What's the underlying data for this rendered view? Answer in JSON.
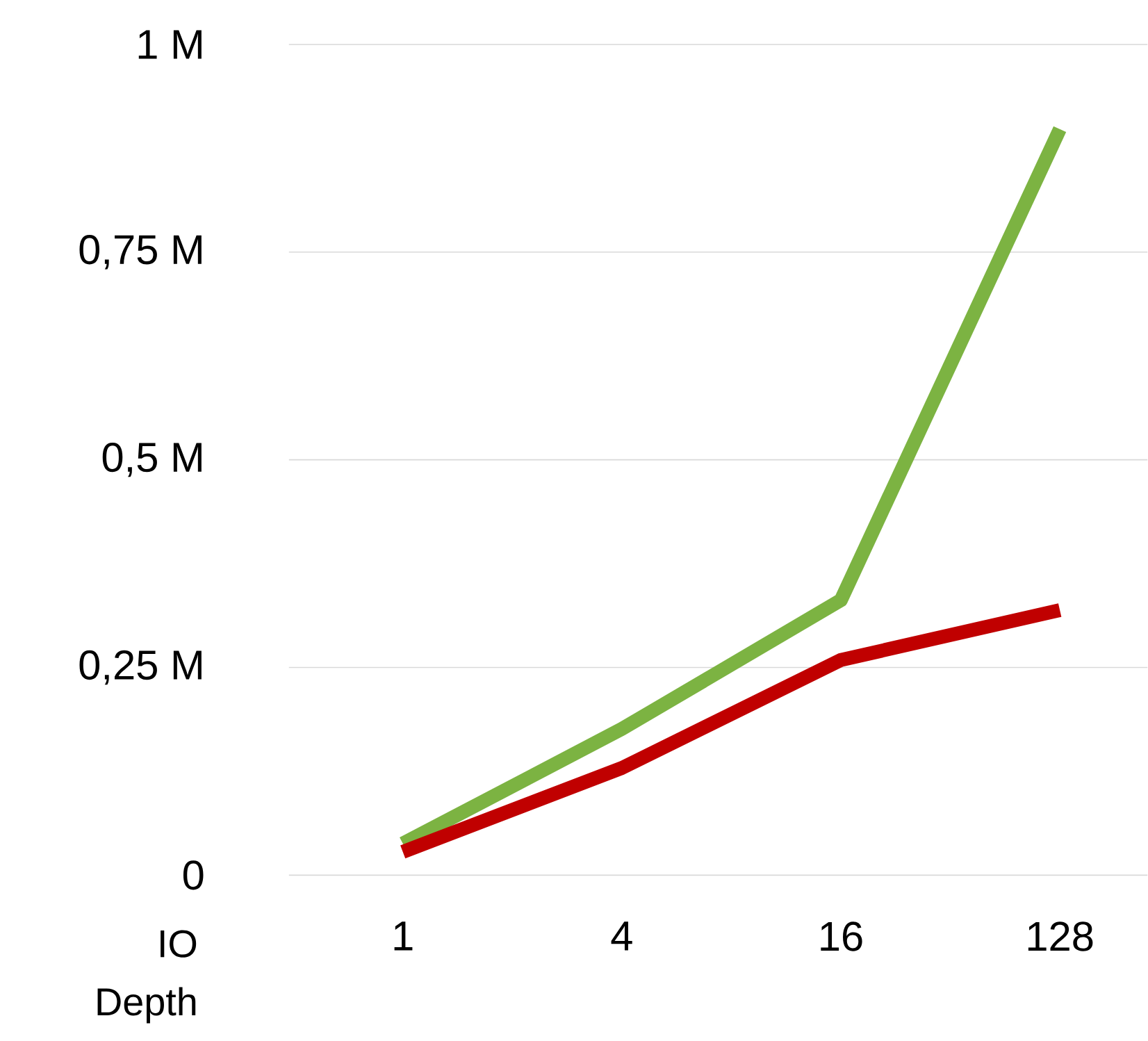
{
  "chart_data": {
    "type": "line",
    "xlabel": "IO Depth",
    "categories": [
      "1",
      "4",
      "16",
      "128"
    ],
    "series": [
      {
        "color": "#7cb342",
        "values": [
          0.038,
          0.176,
          0.331,
          0.898
        ]
      },
      {
        "color": "#c00000",
        "values": [
          0.028,
          0.129,
          0.259,
          0.319
        ]
      }
    ],
    "ylim": [
      0,
      1
    ],
    "yticks": [
      {
        "value": 0,
        "label": "0"
      },
      {
        "value": 0.25,
        "label": "0,25 M"
      },
      {
        "value": 0.5,
        "label": "0,5 M"
      },
      {
        "value": 0.75,
        "label": "0,75 M"
      },
      {
        "value": 1,
        "label": "1 M"
      }
    ],
    "grid": "y",
    "marker": "none",
    "line_style": "solid"
  }
}
